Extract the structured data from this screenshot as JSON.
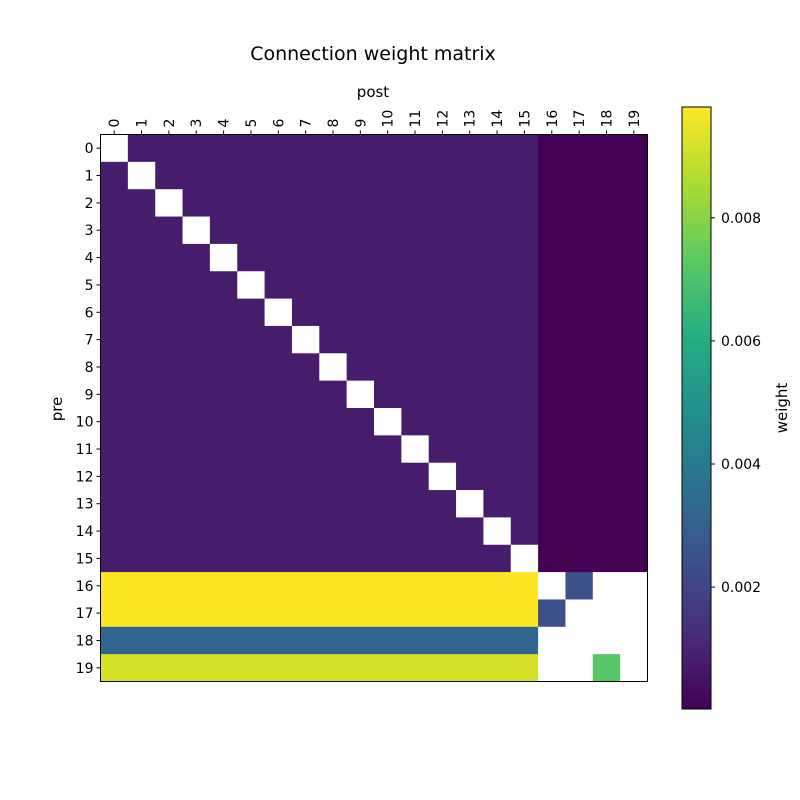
{
  "chart_data": {
    "type": "heatmap",
    "title": "Connection weight matrix",
    "xlabel": "post",
    "ylabel": "pre",
    "rows": [
      "0",
      "1",
      "2",
      "3",
      "4",
      "5",
      "6",
      "7",
      "8",
      "9",
      "10",
      "11",
      "12",
      "13",
      "14",
      "15",
      "16",
      "17",
      "18",
      "19"
    ],
    "cols": [
      "0",
      "1",
      "2",
      "3",
      "4",
      "5",
      "6",
      "7",
      "8",
      "9",
      "10",
      "11",
      "12",
      "13",
      "14",
      "15",
      "16",
      "17",
      "18",
      "19"
    ],
    "colorbar": {
      "label": "weight",
      "ticks": [
        "0.002",
        "0.004",
        "0.006",
        "0.008"
      ],
      "tick_values": [
        0.002,
        0.004,
        0.006,
        0.008
      ],
      "range": [
        2e-05,
        0.0098
      ],
      "colormap": "viridis"
    },
    "values": [
      [
        null,
        0.0008,
        0.0008,
        0.0008,
        0.0008,
        0.0008,
        0.0008,
        0.0008,
        0.0008,
        0.0008,
        0.0008,
        0.0008,
        0.0008,
        0.0008,
        0.0008,
        0.0008,
        2e-05,
        2e-05,
        2e-05,
        2e-05
      ],
      [
        0.0008,
        null,
        0.0008,
        0.0008,
        0.0008,
        0.0008,
        0.0008,
        0.0008,
        0.0008,
        0.0008,
        0.0008,
        0.0008,
        0.0008,
        0.0008,
        0.0008,
        0.0008,
        2e-05,
        2e-05,
        2e-05,
        2e-05
      ],
      [
        0.0008,
        0.0008,
        null,
        0.0008,
        0.0008,
        0.0008,
        0.0008,
        0.0008,
        0.0008,
        0.0008,
        0.0008,
        0.0008,
        0.0008,
        0.0008,
        0.0008,
        0.0008,
        2e-05,
        2e-05,
        2e-05,
        2e-05
      ],
      [
        0.0008,
        0.0008,
        0.0008,
        null,
        0.0008,
        0.0008,
        0.0008,
        0.0008,
        0.0008,
        0.0008,
        0.0008,
        0.0008,
        0.0008,
        0.0008,
        0.0008,
        0.0008,
        2e-05,
        2e-05,
        2e-05,
        2e-05
      ],
      [
        0.0008,
        0.0008,
        0.0008,
        0.0008,
        null,
        0.0008,
        0.0008,
        0.0008,
        0.0008,
        0.0008,
        0.0008,
        0.0008,
        0.0008,
        0.0008,
        0.0008,
        0.0008,
        2e-05,
        2e-05,
        2e-05,
        2e-05
      ],
      [
        0.0008,
        0.0008,
        0.0008,
        0.0008,
        0.0008,
        null,
        0.0008,
        0.0008,
        0.0008,
        0.0008,
        0.0008,
        0.0008,
        0.0008,
        0.0008,
        0.0008,
        0.0008,
        2e-05,
        2e-05,
        2e-05,
        2e-05
      ],
      [
        0.0008,
        0.0008,
        0.0008,
        0.0008,
        0.0008,
        0.0008,
        null,
        0.0008,
        0.0008,
        0.0008,
        0.0008,
        0.0008,
        0.0008,
        0.0008,
        0.0008,
        0.0008,
        2e-05,
        2e-05,
        2e-05,
        2e-05
      ],
      [
        0.0008,
        0.0008,
        0.0008,
        0.0008,
        0.0008,
        0.0008,
        0.0008,
        null,
        0.0008,
        0.0008,
        0.0008,
        0.0008,
        0.0008,
        0.0008,
        0.0008,
        0.0008,
        2e-05,
        2e-05,
        2e-05,
        2e-05
      ],
      [
        0.0008,
        0.0008,
        0.0008,
        0.0008,
        0.0008,
        0.0008,
        0.0008,
        0.0008,
        null,
        0.0008,
        0.0008,
        0.0008,
        0.0008,
        0.0008,
        0.0008,
        0.0008,
        2e-05,
        2e-05,
        2e-05,
        2e-05
      ],
      [
        0.0008,
        0.0008,
        0.0008,
        0.0008,
        0.0008,
        0.0008,
        0.0008,
        0.0008,
        0.0008,
        null,
        0.0008,
        0.0008,
        0.0008,
        0.0008,
        0.0008,
        0.0008,
        2e-05,
        2e-05,
        2e-05,
        2e-05
      ],
      [
        0.0008,
        0.0008,
        0.0008,
        0.0008,
        0.0008,
        0.0008,
        0.0008,
        0.0008,
        0.0008,
        0.0008,
        null,
        0.0008,
        0.0008,
        0.0008,
        0.0008,
        0.0008,
        2e-05,
        2e-05,
        2e-05,
        2e-05
      ],
      [
        0.0008,
        0.0008,
        0.0008,
        0.0008,
        0.0008,
        0.0008,
        0.0008,
        0.0008,
        0.0008,
        0.0008,
        0.0008,
        null,
        0.0008,
        0.0008,
        0.0008,
        0.0008,
        2e-05,
        2e-05,
        2e-05,
        2e-05
      ],
      [
        0.0008,
        0.0008,
        0.0008,
        0.0008,
        0.0008,
        0.0008,
        0.0008,
        0.0008,
        0.0008,
        0.0008,
        0.0008,
        0.0008,
        null,
        0.0008,
        0.0008,
        0.0008,
        2e-05,
        2e-05,
        2e-05,
        2e-05
      ],
      [
        0.0008,
        0.0008,
        0.0008,
        0.0008,
        0.0008,
        0.0008,
        0.0008,
        0.0008,
        0.0008,
        0.0008,
        0.0008,
        0.0008,
        0.0008,
        null,
        0.0008,
        0.0008,
        2e-05,
        2e-05,
        2e-05,
        2e-05
      ],
      [
        0.0008,
        0.0008,
        0.0008,
        0.0008,
        0.0008,
        0.0008,
        0.0008,
        0.0008,
        0.0008,
        0.0008,
        0.0008,
        0.0008,
        0.0008,
        0.0008,
        null,
        0.0008,
        2e-05,
        2e-05,
        2e-05,
        2e-05
      ],
      [
        0.0008,
        0.0008,
        0.0008,
        0.0008,
        0.0008,
        0.0008,
        0.0008,
        0.0008,
        0.0008,
        0.0008,
        0.0008,
        0.0008,
        0.0008,
        0.0008,
        0.0008,
        null,
        2e-05,
        2e-05,
        2e-05,
        2e-05
      ],
      [
        0.0098,
        0.0098,
        0.0098,
        0.0098,
        0.0098,
        0.0098,
        0.0098,
        0.0098,
        0.0098,
        0.0098,
        0.0098,
        0.0098,
        0.0098,
        0.0098,
        0.0098,
        0.0098,
        null,
        0.0024,
        null,
        null
      ],
      [
        0.0098,
        0.0098,
        0.0098,
        0.0098,
        0.0098,
        0.0098,
        0.0098,
        0.0098,
        0.0098,
        0.0098,
        0.0098,
        0.0098,
        0.0098,
        0.0098,
        0.0098,
        0.0098,
        0.0024,
        null,
        null,
        null
      ],
      [
        0.0032,
        0.0032,
        0.0032,
        0.0032,
        0.0032,
        0.0032,
        0.0032,
        0.0032,
        0.0032,
        0.0032,
        0.0032,
        0.0032,
        0.0032,
        0.0032,
        0.0032,
        0.0032,
        null,
        null,
        null,
        null
      ],
      [
        0.0092,
        0.0092,
        0.0092,
        0.0092,
        0.0092,
        0.0092,
        0.0092,
        0.0092,
        0.0092,
        0.0092,
        0.0092,
        0.0092,
        0.0092,
        0.0092,
        0.0092,
        0.0092,
        null,
        null,
        0.0072,
        null
      ]
    ]
  }
}
